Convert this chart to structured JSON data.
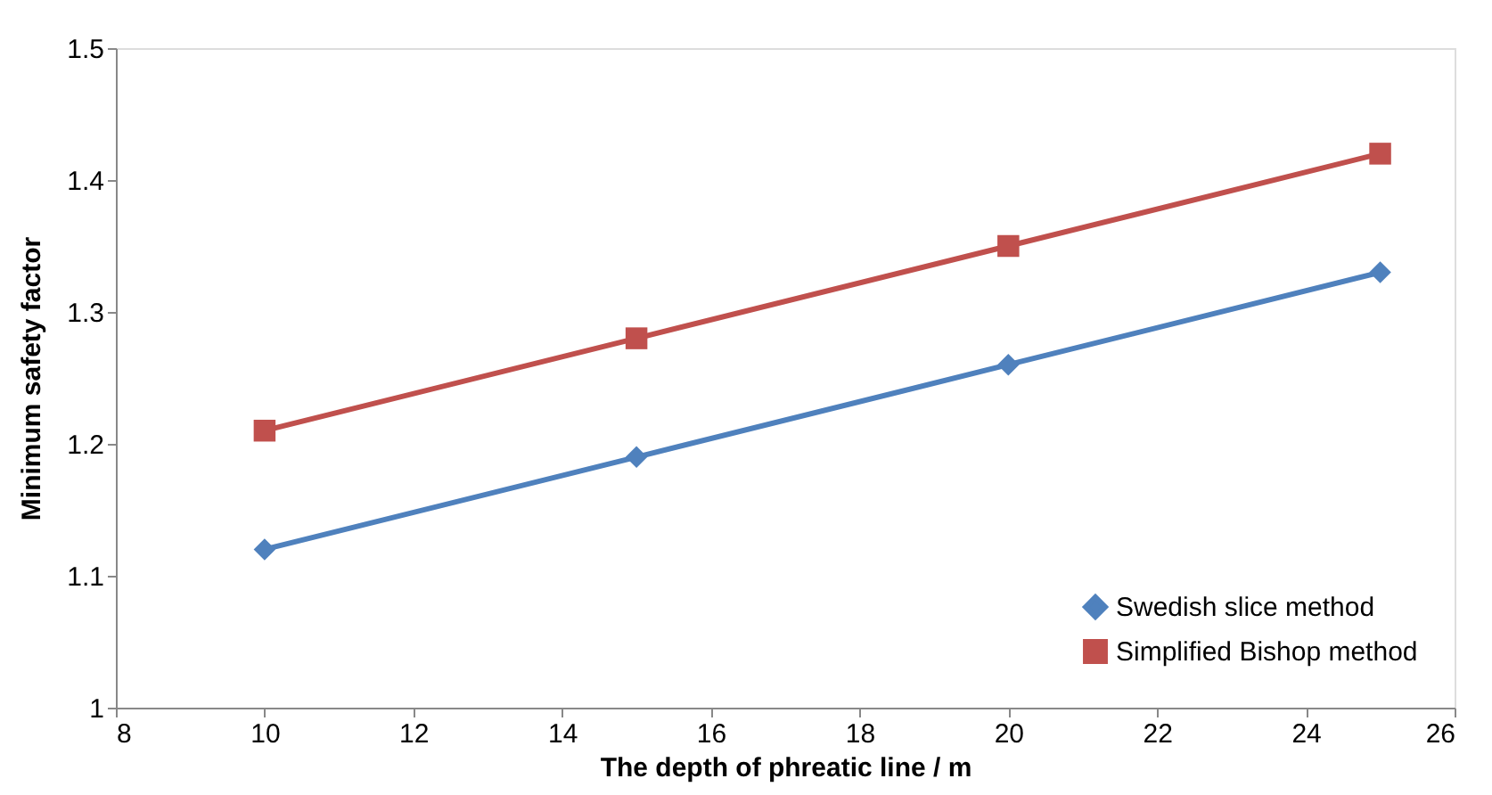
{
  "chart_data": {
    "type": "line",
    "xlabel": "The depth of phreatic line / m",
    "ylabel": "Minimum safety factor",
    "x": [
      10,
      15,
      20,
      25
    ],
    "series": [
      {
        "name": "Swedish slice method",
        "color": "#4f81bd",
        "marker": "diamond",
        "values": [
          1.12,
          1.19,
          1.26,
          1.33
        ]
      },
      {
        "name": "Simplified Bishop method",
        "color": "#c0504d",
        "marker": "square",
        "values": [
          1.21,
          1.28,
          1.35,
          1.42
        ]
      }
    ],
    "xlim": [
      8,
      26
    ],
    "xticks": [
      8,
      10,
      12,
      14,
      16,
      18,
      20,
      22,
      24,
      26
    ],
    "ylim": [
      1,
      1.5
    ],
    "yticks": [
      1,
      1.1,
      1.2,
      1.3,
      1.4,
      1.5
    ],
    "grid": false,
    "legend": "bottom right"
  }
}
